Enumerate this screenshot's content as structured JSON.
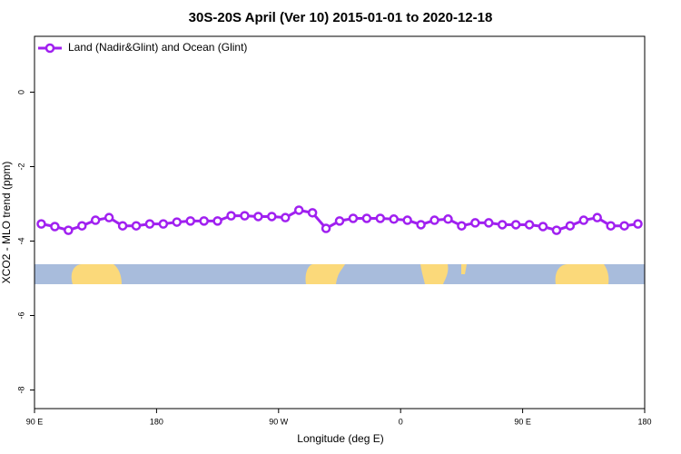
{
  "chart_data": {
    "type": "line",
    "title": "30S-20S April (Ver 10)   2015-01-01 to 2020-12-18",
    "xlabel": "Longitude (deg E)",
    "ylabel": "XCO2 - MLO trend (ppm)",
    "x": [
      95,
      105,
      115,
      125,
      135,
      145,
      155,
      165,
      175,
      185,
      195,
      205,
      215,
      225,
      235,
      245,
      255,
      265,
      275,
      285,
      295,
      305,
      315,
      325,
      335,
      345,
      355,
      365,
      375,
      385,
      395,
      405,
      415,
      425,
      435,
      445,
      455,
      465,
      475,
      485,
      495,
      505,
      515,
      525,
      535
    ],
    "series": [
      {
        "name": "Land (Nadir&Glint) and Ocean (Glint)",
        "color": "#a020f0",
        "values": [
          -3.54,
          -3.61,
          -3.71,
          -3.59,
          -3.44,
          -3.37,
          -3.59,
          -3.59,
          -3.54,
          -3.54,
          -3.49,
          -3.46,
          -3.46,
          -3.46,
          -3.32,
          -3.32,
          -3.34,
          -3.34,
          -3.37,
          -3.17,
          -3.24,
          -3.66,
          -3.46,
          -3.39,
          -3.39,
          -3.39,
          -3.41,
          -3.44,
          -3.56,
          -3.44,
          -3.41,
          -3.59,
          -3.51,
          -3.51,
          -3.56,
          -3.56,
          -3.56,
          -3.61,
          -3.71,
          -3.59,
          -3.44,
          -3.37,
          -3.59,
          -3.59,
          -3.54
        ]
      }
    ],
    "xlim": [
      90,
      540
    ],
    "xticks": [
      {
        "value": 90,
        "label": "90 E"
      },
      180,
      {
        "value": 270,
        "label": "90 W"
      },
      {
        "value": 360,
        "label": "0"
      },
      {
        "value": 450,
        "label": "90 E"
      },
      {
        "value": 540,
        "label": "180"
      }
    ],
    "ylim": [
      -8.5,
      1.5
    ],
    "yticks": [
      0,
      -2,
      -4,
      -6,
      -8
    ],
    "legend": "top-left"
  }
}
